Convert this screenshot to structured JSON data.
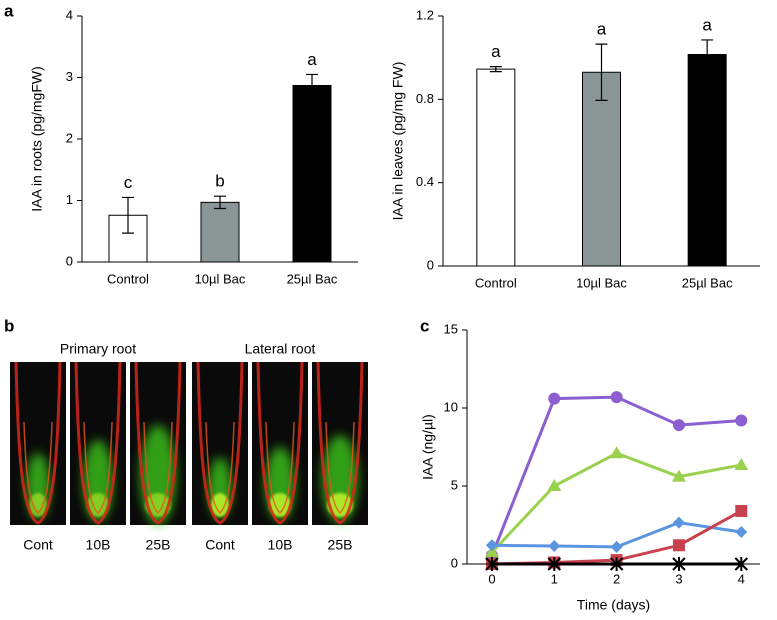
{
  "panel_labels": [
    "a",
    "b",
    "c"
  ],
  "micrographs": {
    "groups": [
      {
        "title": "Primary root",
        "labels": [
          "Cont",
          "10B",
          "25B"
        ]
      },
      {
        "title": "Lateral root",
        "labels": [
          "Cont",
          "10B",
          "25B"
        ]
      }
    ]
  },
  "chart_data": [
    {
      "type": "bar",
      "y_label": "IAA in roots (pg/mgFW)",
      "categories": [
        "Control",
        "10µl Bac",
        "25µl Bac"
      ],
      "values": [
        0.76,
        0.97,
        2.87
      ],
      "errors": [
        0.29,
        0.1,
        0.18
      ],
      "letters": [
        "c",
        "b",
        "a"
      ],
      "colors": [
        "#ffffff",
        "#8a9696",
        "#000000"
      ],
      "ylim": [
        0,
        4
      ],
      "yticks": [
        0,
        1,
        2,
        3,
        4
      ]
    },
    {
      "type": "bar",
      "y_label": "IAA in leaves (pg/mg FW)",
      "categories": [
        "Control",
        "10µl Bac",
        "25µl Bac"
      ],
      "values": [
        0.945,
        0.93,
        1.015
      ],
      "errors": [
        0.012,
        0.135,
        0.07
      ],
      "letters": [
        "a",
        "a",
        "a"
      ],
      "colors": [
        "#ffffff",
        "#8a9696",
        "#000000"
      ],
      "ylim": [
        0,
        1.2
      ],
      "yticks": [
        0,
        0.4,
        0.8,
        1.2
      ]
    },
    {
      "type": "line",
      "x_label": "Time (days)",
      "y_label": "IAA (ng/µl)",
      "x": [
        0,
        1,
        2,
        3,
        4
      ],
      "series": [
        {
          "color": "#8b5fd0",
          "marker": "circle",
          "values": [
            0.55,
            10.6,
            10.7,
            8.9,
            9.2
          ]
        },
        {
          "color": "#9ad14e",
          "marker": "triangle",
          "values": [
            0.75,
            5.0,
            7.1,
            5.6,
            6.35
          ]
        },
        {
          "color": "#5b95e0",
          "marker": "diamond",
          "values": [
            1.2,
            1.15,
            1.1,
            2.65,
            2.05
          ]
        },
        {
          "color": "#c8414e",
          "marker": "square",
          "values": [
            0,
            0.1,
            0.25,
            1.2,
            3.4
          ]
        },
        {
          "color": "#000000",
          "marker": "asterisk",
          "values": [
            0,
            0,
            0,
            0,
            0
          ]
        }
      ],
      "xlim": [
        -0.4,
        4.3
      ],
      "xticks": [
        0,
        1,
        2,
        3,
        4
      ],
      "ylim": [
        0,
        15
      ],
      "yticks": [
        0,
        5,
        10,
        15
      ]
    }
  ]
}
